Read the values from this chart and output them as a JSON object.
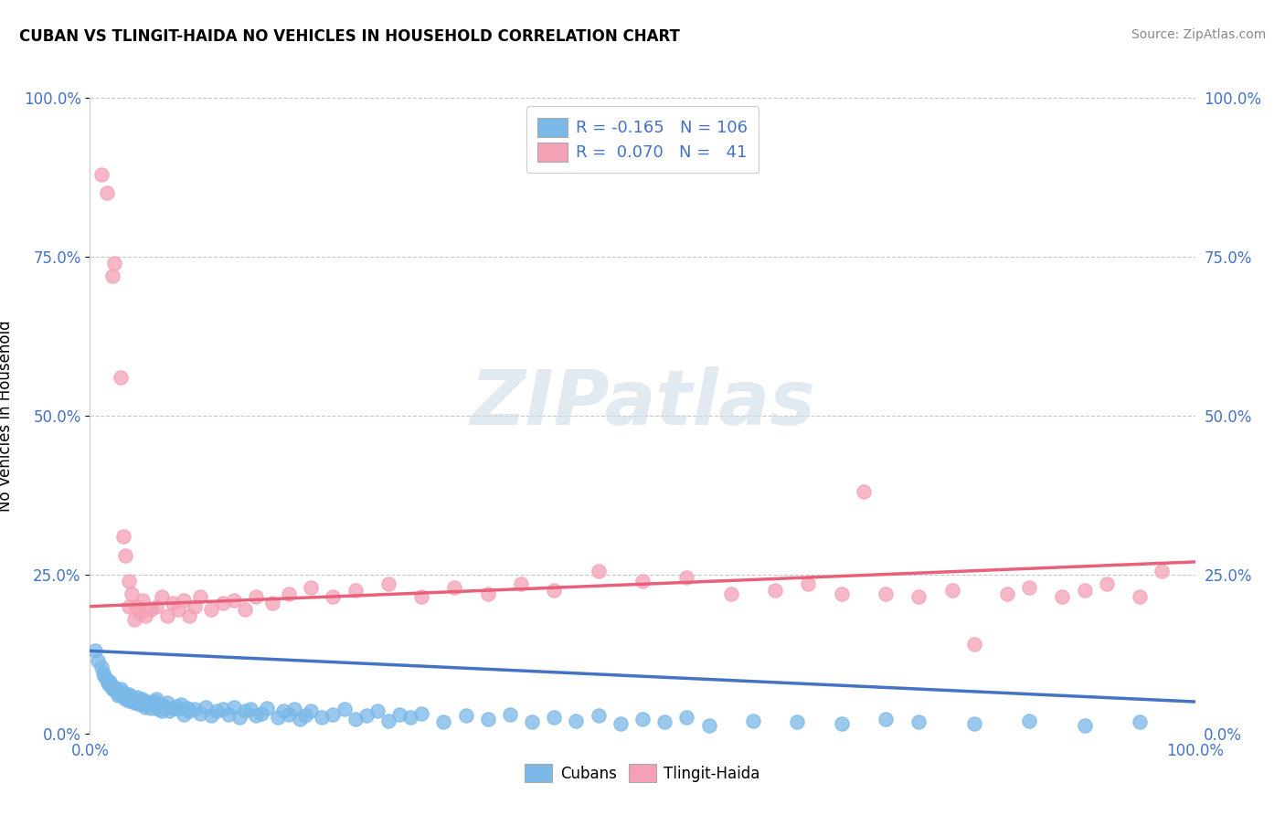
{
  "title": "CUBAN VS TLINGIT-HAIDA NO VEHICLES IN HOUSEHOLD CORRELATION CHART",
  "source": "Source: ZipAtlas.com",
  "ylabel": "No Vehicles in Household",
  "yticks": [
    "0.0%",
    "25.0%",
    "50.0%",
    "75.0%",
    "100.0%"
  ],
  "ytick_vals": [
    0.0,
    0.25,
    0.5,
    0.75,
    1.0
  ],
  "xlim": [
    0.0,
    1.0
  ],
  "ylim": [
    0.0,
    1.0
  ],
  "cubans_color": "#7ab8e8",
  "tlingit_color": "#f4a0b5",
  "cubans_line_color": "#4472c4",
  "tlingit_line_color": "#e8607a",
  "tick_color": "#4472c4",
  "watermark_text": "ZIPatlas",
  "background_color": "#ffffff",
  "grid_color": "#c8c8c8",
  "cubans_scatter": [
    [
      0.005,
      0.13
    ],
    [
      0.007,
      0.115
    ],
    [
      0.01,
      0.105
    ],
    [
      0.012,
      0.095
    ],
    [
      0.013,
      0.09
    ],
    [
      0.015,
      0.085
    ],
    [
      0.016,
      0.08
    ],
    [
      0.017,
      0.078
    ],
    [
      0.018,
      0.082
    ],
    [
      0.02,
      0.075
    ],
    [
      0.02,
      0.07
    ],
    [
      0.022,
      0.068
    ],
    [
      0.023,
      0.072
    ],
    [
      0.025,
      0.065
    ],
    [
      0.025,
      0.06
    ],
    [
      0.027,
      0.063
    ],
    [
      0.028,
      0.07
    ],
    [
      0.03,
      0.058
    ],
    [
      0.03,
      0.065
    ],
    [
      0.032,
      0.055
    ],
    [
      0.033,
      0.06
    ],
    [
      0.035,
      0.062
    ],
    [
      0.035,
      0.052
    ],
    [
      0.037,
      0.058
    ],
    [
      0.038,
      0.055
    ],
    [
      0.04,
      0.048
    ],
    [
      0.04,
      0.053
    ],
    [
      0.042,
      0.05
    ],
    [
      0.043,
      0.057
    ],
    [
      0.045,
      0.045
    ],
    [
      0.045,
      0.05
    ],
    [
      0.047,
      0.055
    ],
    [
      0.048,
      0.048
    ],
    [
      0.05,
      0.042
    ],
    [
      0.05,
      0.052
    ],
    [
      0.052,
      0.045
    ],
    [
      0.055,
      0.048
    ],
    [
      0.055,
      0.04
    ],
    [
      0.058,
      0.05
    ],
    [
      0.06,
      0.043
    ],
    [
      0.06,
      0.055
    ],
    [
      0.062,
      0.038
    ],
    [
      0.065,
      0.045
    ],
    [
      0.065,
      0.035
    ],
    [
      0.068,
      0.042
    ],
    [
      0.07,
      0.048
    ],
    [
      0.072,
      0.035
    ],
    [
      0.075,
      0.04
    ],
    [
      0.078,
      0.043
    ],
    [
      0.08,
      0.038
    ],
    [
      0.082,
      0.045
    ],
    [
      0.085,
      0.03
    ],
    [
      0.088,
      0.04
    ],
    [
      0.09,
      0.035
    ],
    [
      0.095,
      0.038
    ],
    [
      0.1,
      0.032
    ],
    [
      0.105,
      0.042
    ],
    [
      0.11,
      0.028
    ],
    [
      0.115,
      0.035
    ],
    [
      0.12,
      0.038
    ],
    [
      0.125,
      0.03
    ],
    [
      0.13,
      0.042
    ],
    [
      0.135,
      0.025
    ],
    [
      0.14,
      0.035
    ],
    [
      0.145,
      0.038
    ],
    [
      0.15,
      0.028
    ],
    [
      0.155,
      0.032
    ],
    [
      0.16,
      0.04
    ],
    [
      0.17,
      0.025
    ],
    [
      0.175,
      0.035
    ],
    [
      0.18,
      0.03
    ],
    [
      0.185,
      0.038
    ],
    [
      0.19,
      0.022
    ],
    [
      0.195,
      0.028
    ],
    [
      0.2,
      0.035
    ],
    [
      0.21,
      0.025
    ],
    [
      0.22,
      0.03
    ],
    [
      0.23,
      0.038
    ],
    [
      0.24,
      0.022
    ],
    [
      0.25,
      0.028
    ],
    [
      0.26,
      0.035
    ],
    [
      0.27,
      0.02
    ],
    [
      0.28,
      0.03
    ],
    [
      0.29,
      0.025
    ],
    [
      0.3,
      0.032
    ],
    [
      0.32,
      0.018
    ],
    [
      0.34,
      0.028
    ],
    [
      0.36,
      0.022
    ],
    [
      0.38,
      0.03
    ],
    [
      0.4,
      0.018
    ],
    [
      0.42,
      0.025
    ],
    [
      0.44,
      0.02
    ],
    [
      0.46,
      0.028
    ],
    [
      0.48,
      0.015
    ],
    [
      0.5,
      0.022
    ],
    [
      0.52,
      0.018
    ],
    [
      0.54,
      0.025
    ],
    [
      0.56,
      0.012
    ],
    [
      0.6,
      0.02
    ],
    [
      0.64,
      0.018
    ],
    [
      0.68,
      0.015
    ],
    [
      0.72,
      0.022
    ],
    [
      0.75,
      0.018
    ],
    [
      0.8,
      0.015
    ],
    [
      0.85,
      0.02
    ],
    [
      0.9,
      0.012
    ],
    [
      0.95,
      0.018
    ]
  ],
  "tlingit_scatter": [
    [
      0.01,
      0.88
    ],
    [
      0.015,
      0.85
    ],
    [
      0.02,
      0.72
    ],
    [
      0.022,
      0.74
    ],
    [
      0.028,
      0.56
    ],
    [
      0.03,
      0.31
    ],
    [
      0.032,
      0.28
    ],
    [
      0.035,
      0.24
    ],
    [
      0.035,
      0.2
    ],
    [
      0.038,
      0.22
    ],
    [
      0.04,
      0.18
    ],
    [
      0.042,
      0.2
    ],
    [
      0.045,
      0.19
    ],
    [
      0.048,
      0.21
    ],
    [
      0.05,
      0.185
    ],
    [
      0.055,
      0.195
    ],
    [
      0.06,
      0.2
    ],
    [
      0.065,
      0.215
    ],
    [
      0.07,
      0.185
    ],
    [
      0.075,
      0.205
    ],
    [
      0.08,
      0.195
    ],
    [
      0.085,
      0.21
    ],
    [
      0.09,
      0.185
    ],
    [
      0.095,
      0.2
    ],
    [
      0.1,
      0.215
    ],
    [
      0.11,
      0.195
    ],
    [
      0.12,
      0.205
    ],
    [
      0.13,
      0.21
    ],
    [
      0.14,
      0.195
    ],
    [
      0.15,
      0.215
    ],
    [
      0.165,
      0.205
    ],
    [
      0.18,
      0.22
    ],
    [
      0.2,
      0.23
    ],
    [
      0.22,
      0.215
    ],
    [
      0.24,
      0.225
    ],
    [
      0.27,
      0.235
    ],
    [
      0.3,
      0.215
    ],
    [
      0.33,
      0.23
    ],
    [
      0.36,
      0.22
    ],
    [
      0.39,
      0.235
    ],
    [
      0.42,
      0.225
    ],
    [
      0.46,
      0.255
    ],
    [
      0.5,
      0.24
    ],
    [
      0.54,
      0.245
    ],
    [
      0.58,
      0.22
    ],
    [
      0.62,
      0.225
    ],
    [
      0.65,
      0.235
    ],
    [
      0.68,
      0.22
    ],
    [
      0.7,
      0.38
    ],
    [
      0.72,
      0.22
    ],
    [
      0.75,
      0.215
    ],
    [
      0.78,
      0.225
    ],
    [
      0.8,
      0.14
    ],
    [
      0.83,
      0.22
    ],
    [
      0.85,
      0.23
    ],
    [
      0.88,
      0.215
    ],
    [
      0.9,
      0.225
    ],
    [
      0.92,
      0.235
    ],
    [
      0.95,
      0.215
    ],
    [
      0.97,
      0.255
    ]
  ],
  "cubans_line_start_y": 0.13,
  "cubans_line_end_y": 0.05,
  "tlingit_line_start_y": 0.2,
  "tlingit_line_end_y": 0.27
}
